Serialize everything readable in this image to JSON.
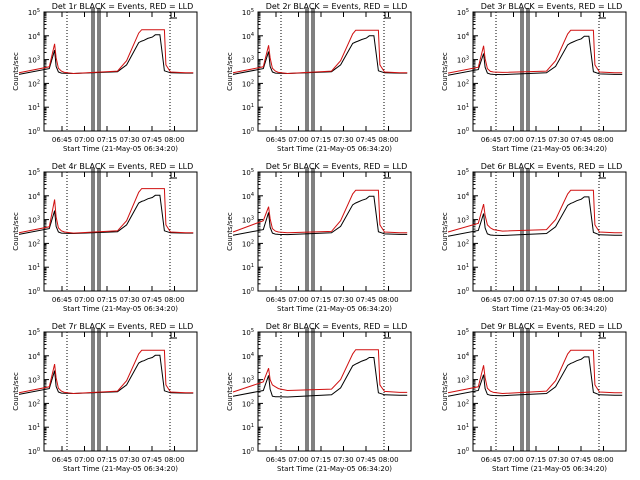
{
  "chart_data": [
    {
      "type": "line",
      "title": "Det 1r BLACK = Events, RED = LLD",
      "xlabel": "Start Time (21-May-05 06:34:20)",
      "ylabel": "Counts/sec",
      "y_scale": "log",
      "ylim": [
        1,
        100000
      ],
      "x_tick_labels": [
        "06:45",
        "07:00",
        "07:15",
        "07:30",
        "07:45",
        "08:00"
      ],
      "y_tick_labels": [
        "10^0",
        "10^1",
        "10^2",
        "10^3",
        "10^4",
        "10^5"
      ],
      "grid": false,
      "legend": "title",
      "series": [
        {
          "color": "#000000",
          "x": [
            0,
            0.4,
            0.47,
            0.49,
            0.52,
            0.56,
            0.6,
            0.72,
            1.3,
            1.42,
            1.58,
            1.62,
            1.65,
            1.7,
            1.76,
            1.8,
            1.86,
            1.92,
            2.0,
            2.2,
            2.3
          ],
          "y": [
            240,
            420,
            2500,
            520,
            300,
            270,
            265,
            260,
            310,
            600,
            5200,
            6000,
            6500,
            7800,
            8800,
            11000,
            11000,
            340,
            280,
            270,
            270
          ]
        },
        {
          "color": "#d01010",
          "x": [
            0,
            0.4,
            0.47,
            0.49,
            0.52,
            0.56,
            0.6,
            0.72,
            1.3,
            1.42,
            1.58,
            1.62,
            1.92,
            1.94,
            2.0,
            2.2,
            2.3
          ],
          "y": [
            280,
            500,
            4600,
            1200,
            430,
            330,
            290,
            260,
            330,
            900,
            13000,
            18000,
            18000,
            600,
            300,
            280,
            280
          ]
        }
      ]
    },
    {
      "type": "line",
      "title": "Det 2r BLACK = Events, RED = LLD",
      "xlabel": "Start Time (21-May-05 06:34:20)",
      "ylabel": "Counts/sec",
      "y_scale": "log",
      "ylim": [
        1,
        100000
      ],
      "x_tick_labels": [
        "06:45",
        "07:00",
        "07:15",
        "07:30",
        "07:45",
        "08:00"
      ],
      "y_tick_labels": [
        "10^0",
        "10^1",
        "10^2",
        "10^3",
        "10^4",
        "10^5"
      ],
      "grid": false,
      "legend": "title",
      "series": [
        {
          "color": "#000000",
          "x": [
            0,
            0.4,
            0.47,
            0.49,
            0.52,
            0.56,
            0.6,
            0.72,
            1.3,
            1.42,
            1.58,
            1.62,
            1.65,
            1.7,
            1.76,
            1.8,
            1.86,
            1.92,
            2.0,
            2.2,
            2.3
          ],
          "y": [
            240,
            420,
            2200,
            520,
            300,
            270,
            265,
            260,
            310,
            600,
            4800,
            5500,
            6000,
            7000,
            8000,
            10000,
            10000,
            340,
            280,
            270,
            270
          ]
        },
        {
          "color": "#d01010",
          "x": [
            0,
            0.4,
            0.47,
            0.49,
            0.52,
            0.56,
            0.6,
            0.72,
            1.3,
            1.42,
            1.58,
            1.62,
            1.92,
            1.94,
            2.0,
            2.2,
            2.3
          ],
          "y": [
            280,
            500,
            4000,
            1200,
            430,
            330,
            290,
            260,
            330,
            900,
            12000,
            17000,
            17000,
            600,
            300,
            280,
            280
          ]
        }
      ]
    },
    {
      "type": "line",
      "title": "Det 3r BLACK = Events, RED = LLD",
      "xlabel": "Start Time (21-May-05 06:34:20)",
      "ylabel": "Counts/sec",
      "y_scale": "log",
      "ylim": [
        1,
        100000
      ],
      "x_tick_labels": [
        "06:45",
        "07:00",
        "07:15",
        "07:30",
        "07:45",
        "08:00"
      ],
      "y_tick_labels": [
        "10^0",
        "10^1",
        "10^2",
        "10^3",
        "10^4",
        "10^5"
      ],
      "grid": false,
      "legend": "title",
      "series": [
        {
          "color": "#000000",
          "x": [
            0,
            0.4,
            0.47,
            0.49,
            0.52,
            0.56,
            0.6,
            0.72,
            1.3,
            1.42,
            1.58,
            1.62,
            1.65,
            1.7,
            1.76,
            1.8,
            1.86,
            1.92,
            2.0,
            2.2,
            2.3
          ],
          "y": [
            220,
            380,
            1800,
            480,
            270,
            245,
            240,
            235,
            280,
            520,
            4200,
            5000,
            5500,
            6500,
            7500,
            9500,
            9500,
            310,
            250,
            240,
            240
          ]
        },
        {
          "color": "#d01010",
          "x": [
            0,
            0.4,
            0.47,
            0.49,
            0.52,
            0.56,
            0.6,
            0.72,
            1.3,
            1.42,
            1.58,
            1.62,
            1.92,
            1.94,
            2.0,
            2.2,
            2.3
          ],
          "y": [
            270,
            480,
            3800,
            1100,
            420,
            320,
            300,
            290,
            330,
            900,
            12000,
            17000,
            17000,
            600,
            300,
            280,
            280
          ]
        }
      ]
    },
    {
      "type": "line",
      "title": "Det 4r BLACK = Events, RED = LLD",
      "xlabel": "Start Time (21-May-05 06:34:20)",
      "ylabel": "Counts/sec",
      "y_scale": "log",
      "ylim": [
        1,
        100000
      ],
      "x_tick_labels": [
        "06:45",
        "07:00",
        "07:15",
        "07:30",
        "07:45",
        "08:00"
      ],
      "y_tick_labels": [
        "10^0",
        "10^1",
        "10^2",
        "10^3",
        "10^4",
        "10^5"
      ],
      "grid": false,
      "legend": "title",
      "series": [
        {
          "color": "#000000",
          "x": [
            0,
            0.4,
            0.47,
            0.49,
            0.52,
            0.56,
            0.6,
            0.72,
            1.3,
            1.42,
            1.58,
            1.62,
            1.65,
            1.7,
            1.76,
            1.8,
            1.86,
            1.92,
            2.0,
            2.2,
            2.3
          ],
          "y": [
            240,
            420,
            2400,
            520,
            300,
            270,
            265,
            260,
            310,
            600,
            5000,
            5800,
            6200,
            7500,
            8500,
            10500,
            10500,
            340,
            280,
            270,
            270
          ]
        },
        {
          "color": "#d01010",
          "x": [
            0,
            0.4,
            0.47,
            0.49,
            0.52,
            0.56,
            0.6,
            0.72,
            1.3,
            1.42,
            1.58,
            1.62,
            1.92,
            1.94,
            2.0,
            2.2,
            2.3
          ],
          "y": [
            280,
            500,
            7000,
            1300,
            450,
            340,
            300,
            270,
            340,
            900,
            14000,
            20000,
            20000,
            600,
            300,
            280,
            280
          ]
        }
      ]
    },
    {
      "type": "line",
      "title": "Det 5r BLACK = Events, RED = LLD",
      "xlabel": "Start Time (21-May-05 06:34:20)",
      "ylabel": "Counts/sec",
      "y_scale": "log",
      "ylim": [
        1,
        100000
      ],
      "x_tick_labels": [
        "06:45",
        "07:00",
        "07:15",
        "07:30",
        "07:45",
        "08:00"
      ],
      "y_tick_labels": [
        "10^0",
        "10^1",
        "10^2",
        "10^3",
        "10^4",
        "10^5"
      ],
      "grid": false,
      "legend": "title",
      "series": [
        {
          "color": "#000000",
          "x": [
            0,
            0.4,
            0.47,
            0.49,
            0.52,
            0.56,
            0.6,
            0.72,
            1.3,
            1.42,
            1.58,
            1.62,
            1.65,
            1.7,
            1.76,
            1.8,
            1.86,
            1.92,
            2.0,
            2.2,
            2.3
          ],
          "y": [
            220,
            380,
            2000,
            480,
            270,
            245,
            240,
            235,
            280,
            520,
            4200,
            5000,
            5500,
            6500,
            7500,
            9500,
            9500,
            310,
            250,
            240,
            240
          ]
        },
        {
          "color": "#d01010",
          "x": [
            0,
            0.4,
            0.47,
            0.49,
            0.52,
            0.56,
            0.6,
            0.72,
            1.3,
            1.42,
            1.58,
            1.62,
            1.92,
            1.94,
            2.0,
            2.2,
            2.3
          ],
          "y": [
            300,
            900,
            3500,
            1100,
            420,
            330,
            300,
            280,
            320,
            900,
            12000,
            17000,
            17000,
            600,
            300,
            280,
            280
          ]
        }
      ]
    },
    {
      "type": "line",
      "title": "Det 6r BLACK = Events, RED = LLD",
      "xlabel": "Start Time (21-May-05 06:34:20)",
      "ylabel": "Counts/sec",
      "y_scale": "log",
      "ylim": [
        1,
        100000
      ],
      "x_tick_labels": [
        "06:45",
        "07:00",
        "07:15",
        "07:30",
        "07:45",
        "08:00"
      ],
      "y_tick_labels": [
        "10^0",
        "10^1",
        "10^2",
        "10^3",
        "10^4",
        "10^5"
      ],
      "grid": false,
      "legend": "title",
      "series": [
        {
          "color": "#000000",
          "x": [
            0,
            0.4,
            0.47,
            0.49,
            0.52,
            0.56,
            0.6,
            0.72,
            1.3,
            1.42,
            1.58,
            1.62,
            1.65,
            1.7,
            1.76,
            1.8,
            1.86,
            1.92,
            2.0,
            2.2,
            2.3
          ],
          "y": [
            200,
            350,
            1800,
            450,
            250,
            225,
            220,
            215,
            260,
            500,
            4000,
            4800,
            5200,
            6200,
            7200,
            9000,
            9000,
            290,
            230,
            220,
            220
          ]
        },
        {
          "color": "#d01010",
          "x": [
            0,
            0.4,
            0.47,
            0.49,
            0.52,
            0.56,
            0.6,
            0.72,
            1.3,
            1.42,
            1.58,
            1.62,
            1.92,
            1.94,
            2.0,
            2.2,
            2.3
          ],
          "y": [
            300,
            700,
            4500,
            1500,
            600,
            450,
            380,
            330,
            380,
            1000,
            12000,
            17000,
            17000,
            600,
            300,
            280,
            280
          ]
        }
      ]
    },
    {
      "type": "line",
      "title": "Det 7r BLACK = Events, RED = LLD",
      "xlabel": "Start Time (21-May-05 06:34:20)",
      "ylabel": "Counts/sec",
      "y_scale": "log",
      "ylim": [
        1,
        100000
      ],
      "x_tick_labels": [
        "06:45",
        "07:00",
        "07:15",
        "07:30",
        "07:45",
        "08:00"
      ],
      "y_tick_labels": [
        "10^0",
        "10^1",
        "10^2",
        "10^3",
        "10^4",
        "10^5"
      ],
      "grid": false,
      "legend": "title",
      "series": [
        {
          "color": "#000000",
          "x": [
            0,
            0.4,
            0.47,
            0.49,
            0.52,
            0.56,
            0.6,
            0.72,
            1.3,
            1.42,
            1.58,
            1.62,
            1.65,
            1.7,
            1.76,
            1.8,
            1.86,
            1.92,
            2.0,
            2.2,
            2.3
          ],
          "y": [
            240,
            420,
            2400,
            520,
            300,
            270,
            265,
            260,
            310,
            600,
            5000,
            5800,
            6200,
            7500,
            8500,
            10500,
            10500,
            340,
            280,
            270,
            270
          ]
        },
        {
          "color": "#d01010",
          "x": [
            0,
            0.4,
            0.47,
            0.49,
            0.52,
            0.56,
            0.6,
            0.72,
            1.3,
            1.42,
            1.58,
            1.62,
            1.92,
            1.94,
            2.0,
            2.2,
            2.3
          ],
          "y": [
            280,
            500,
            4500,
            1200,
            430,
            330,
            290,
            260,
            330,
            900,
            12000,
            17000,
            17000,
            600,
            300,
            280,
            280
          ]
        }
      ]
    },
    {
      "type": "line",
      "title": "Det 8r BLACK = Events, RED = LLD",
      "xlabel": "Start Time (21-May-05 06:34:20)",
      "ylabel": "Counts/sec",
      "y_scale": "log",
      "ylim": [
        1,
        100000
      ],
      "x_tick_labels": [
        "06:45",
        "07:00",
        "07:15",
        "07:30",
        "07:45",
        "08:00"
      ],
      "y_tick_labels": [
        "10^0",
        "10^1",
        "10^2",
        "10^3",
        "10^4",
        "10^5"
      ],
      "grid": false,
      "legend": "title",
      "series": [
        {
          "color": "#000000",
          "x": [
            0,
            0.4,
            0.47,
            0.49,
            0.52,
            0.56,
            0.6,
            0.72,
            1.3,
            1.42,
            1.58,
            1.62,
            1.65,
            1.7,
            1.76,
            1.8,
            1.86,
            1.92,
            2.0,
            2.2,
            2.3
          ],
          "y": [
            200,
            350,
            1500,
            400,
            200,
            190,
            190,
            185,
            230,
            450,
            3800,
            4500,
            5000,
            6000,
            7000,
            8500,
            8500,
            280,
            230,
            220,
            220
          ]
        },
        {
          "color": "#d01010",
          "x": [
            0,
            0.4,
            0.47,
            0.49,
            0.52,
            0.56,
            0.6,
            0.72,
            1.3,
            1.42,
            1.58,
            1.62,
            1.92,
            1.94,
            2.0,
            2.2,
            2.3
          ],
          "y": [
            300,
            800,
            3000,
            1000,
            600,
            500,
            420,
            350,
            400,
            1000,
            12000,
            18000,
            18000,
            600,
            320,
            290,
            290
          ]
        }
      ]
    },
    {
      "type": "line",
      "title": "Det 9r BLACK = Events, RED = LLD",
      "xlabel": "Start Time (21-May-05 06:34:20)",
      "ylabel": "Counts/sec",
      "y_scale": "log",
      "ylim": [
        1,
        100000
      ],
      "x_tick_labels": [
        "06:45",
        "07:00",
        "07:15",
        "07:30",
        "07:45",
        "08:00"
      ],
      "y_tick_labels": [
        "10^0",
        "10^1",
        "10^2",
        "10^3",
        "10^4",
        "10^5"
      ],
      "grid": false,
      "legend": "title",
      "series": [
        {
          "color": "#000000",
          "x": [
            0,
            0.4,
            0.47,
            0.49,
            0.52,
            0.56,
            0.6,
            0.72,
            1.3,
            1.42,
            1.58,
            1.62,
            1.65,
            1.7,
            1.76,
            1.8,
            1.86,
            1.92,
            2.0,
            2.2,
            2.3
          ],
          "y": [
            200,
            350,
            1600,
            420,
            240,
            220,
            215,
            210,
            260,
            500,
            4000,
            4800,
            5200,
            6200,
            7200,
            9000,
            9000,
            290,
            230,
            220,
            220
          ]
        },
        {
          "color": "#d01010",
          "x": [
            0,
            0.4,
            0.47,
            0.49,
            0.52,
            0.56,
            0.6,
            0.72,
            1.3,
            1.42,
            1.58,
            1.62,
            1.92,
            1.94,
            2.0,
            2.2,
            2.3
          ],
          "y": [
            280,
            500,
            4000,
            1200,
            430,
            330,
            290,
            260,
            330,
            900,
            12000,
            17000,
            17000,
            600,
            300,
            280,
            280
          ]
        }
      ]
    }
  ]
}
